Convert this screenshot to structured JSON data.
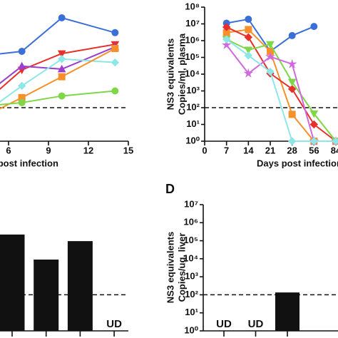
{
  "chart_data": [
    {
      "type": "line",
      "x_label": "Days post infection",
      "log_y": true,
      "xlim": [
        0,
        15
      ],
      "xticks": [
        6,
        9,
        12,
        15
      ],
      "ylim": [
        1,
        100000000
      ],
      "reference_line": 100,
      "x": [
        3,
        7,
        10,
        14
      ],
      "series": [
        {
          "color": "#3a6fd8",
          "marker": "circle",
          "values": [
            100000,
            230000,
            23000000,
            3000000
          ]
        },
        {
          "color": "#e8302a",
          "marker": "triangle-down",
          "values": [
            30,
            18000,
            170000,
            600000
          ]
        },
        {
          "color": "#9b3fd0",
          "marker": "triangle-up",
          "values": [
            100,
            30000,
            20000,
            420000
          ]
        },
        {
          "color": "#8ee6e6",
          "marker": "diamond",
          "values": [
            10,
            2000,
            80000,
            50000
          ]
        },
        {
          "color": "#f7902a",
          "marker": "square",
          "values": [
            10,
            400,
            7000,
            340000
          ]
        },
        {
          "color": "#7ed648",
          "marker": "circle",
          "values": [
            100,
            200,
            500,
            1000
          ]
        }
      ]
    },
    {
      "type": "line",
      "x_label": "Days post infection",
      "y_label": [
        "NS3 equivalents",
        "Copies/ml, plasma"
      ],
      "log_y": true,
      "categories": [
        "0",
        "7",
        "14",
        "21",
        "28",
        "56",
        "84"
      ],
      "ylim": [
        1,
        100000000
      ],
      "reference_line": 100,
      "yticks": [
        {
          "value": 1,
          "label": "10⁰"
        },
        {
          "value": 10,
          "label": "10¹"
        },
        {
          "value": 100,
          "label": "10²"
        },
        {
          "value": 1000,
          "label": "10³"
        },
        {
          "value": 10000,
          "label": "10⁴"
        },
        {
          "value": 100000,
          "label": "10⁵"
        },
        {
          "value": 1000000,
          "label": "10⁶"
        },
        {
          "value": 10000000,
          "label": "10⁷"
        },
        {
          "value": 100000000,
          "label": "10⁸"
        }
      ],
      "series": [
        {
          "color": "#3a6fd8",
          "marker": "circle",
          "values": [
            null,
            11000000,
            19000000,
            230000,
            2000000,
            7000000,
            null
          ]
        },
        {
          "color": "#f7902a",
          "marker": "square",
          "values": [
            null,
            3000000,
            4600000,
            230000,
            40,
            1,
            1
          ]
        },
        {
          "color": "#e8302a",
          "marker": "diamond",
          "values": [
            null,
            6400000,
            1600000,
            11000,
            1300,
            10,
            1
          ]
        },
        {
          "color": "#7ed648",
          "marker": "triangle-down",
          "values": [
            null,
            1200000,
            280000,
            600000,
            3400,
            44,
            1
          ]
        },
        {
          "color": "#d068e0",
          "marker": "star",
          "values": [
            null,
            550000,
            11000,
            110000,
            40000,
            1,
            1
          ]
        },
        {
          "color": "#8ee6e6",
          "marker": "diamond",
          "values": [
            null,
            1200000,
            130000,
            14000,
            1,
            1,
            1
          ]
        }
      ]
    },
    {
      "type": "bar",
      "log_y": true,
      "ylim": [
        1,
        10000000
      ],
      "reference_line": 100,
      "color": "#111111",
      "categories": [
        null,
        null,
        null,
        null
      ],
      "values": [
        220000,
        9000,
        95000,
        null
      ],
      "value_labels": [
        null,
        null,
        null,
        "UD"
      ]
    },
    {
      "type": "bar",
      "label": "D",
      "y_label": [
        "NS3 equivalents",
        "Copies/ug, liver"
      ],
      "log_y": true,
      "ylim": [
        1,
        10000000
      ],
      "reference_line": 100,
      "color": "#111111",
      "yticks": [
        {
          "value": 1,
          "label": "10⁰"
        },
        {
          "value": 10,
          "label": "10¹"
        },
        {
          "value": 100,
          "label": "10²"
        },
        {
          "value": 1000,
          "label": "10³"
        },
        {
          "value": 10000,
          "label": "10⁴"
        },
        {
          "value": 100000,
          "label": "10⁵"
        },
        {
          "value": 1000000,
          "label": "10⁶"
        },
        {
          "value": 10000000,
          "label": "10⁷"
        }
      ],
      "categories": [
        null,
        null,
        null
      ],
      "values": [
        null,
        null,
        135
      ],
      "value_labels": [
        "UD",
        "UD",
        null
      ]
    }
  ]
}
